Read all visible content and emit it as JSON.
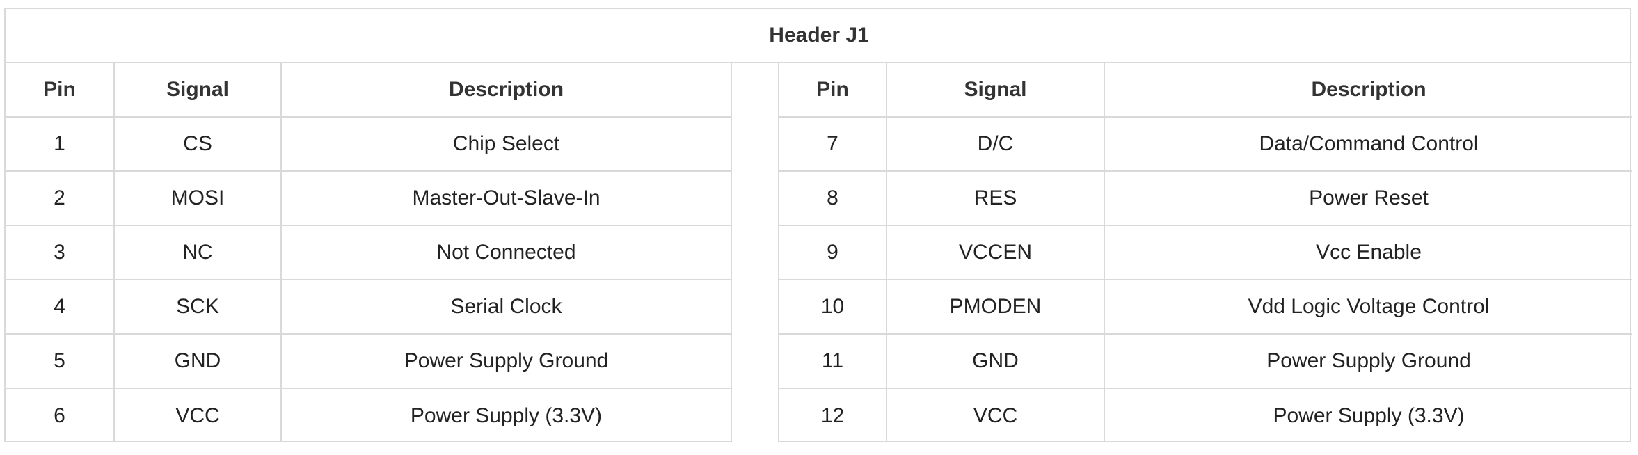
{
  "table": {
    "title": "Header J1",
    "left_headers": [
      "Pin",
      "Signal",
      "Description"
    ],
    "right_headers": [
      "Pin",
      "Signal",
      "Description"
    ],
    "rows": [
      {
        "left": {
          "pin": "1",
          "signal": "CS",
          "description": "Chip Select"
        },
        "right": {
          "pin": "7",
          "signal": "D/C",
          "description": "Data/Command Control"
        }
      },
      {
        "left": {
          "pin": "2",
          "signal": "MOSI",
          "description": "Master-Out-Slave-In"
        },
        "right": {
          "pin": "8",
          "signal": "RES",
          "description": "Power Reset"
        }
      },
      {
        "left": {
          "pin": "3",
          "signal": "NC",
          "description": "Not Connected"
        },
        "right": {
          "pin": "9",
          "signal": "VCCEN",
          "description": "Vcc Enable"
        }
      },
      {
        "left": {
          "pin": "4",
          "signal": "SCK",
          "description": "Serial Clock"
        },
        "right": {
          "pin": "10",
          "signal": "PMODEN",
          "description": "Vdd Logic Voltage Control"
        }
      },
      {
        "left": {
          "pin": "5",
          "signal": "GND",
          "description": "Power Supply Ground"
        },
        "right": {
          "pin": "11",
          "signal": "GND",
          "description": "Power Supply Ground"
        }
      },
      {
        "left": {
          "pin": "6",
          "signal": "VCC",
          "description": "Power Supply (3.3V)"
        },
        "right": {
          "pin": "12",
          "signal": "VCC",
          "description": "Power Supply (3.3V)"
        }
      }
    ]
  }
}
